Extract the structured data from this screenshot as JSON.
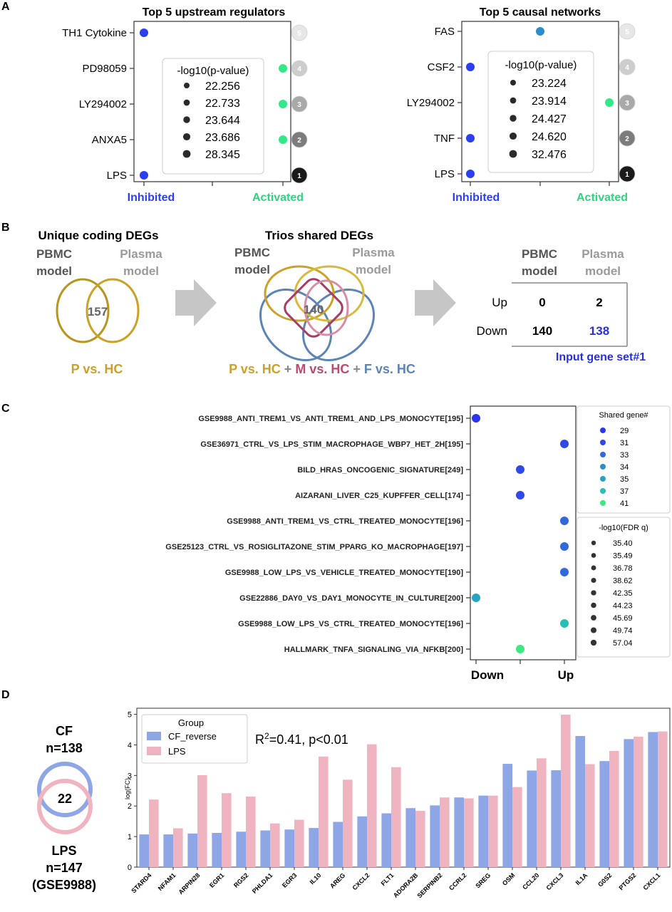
{
  "panel_labels": [
    "A",
    "B",
    "C",
    "D"
  ],
  "colors": {
    "inhibited": "#2b3ff0",
    "activated": "#33e887",
    "up_bar": "#ffffff",
    "gold": "#c9a227",
    "maroon": "#b94a72",
    "steel": "#5e84b6",
    "pink": "#e9a8b8",
    "cf_bar": "#8ea5e6",
    "lps_bar": "#f0b4c0",
    "gray_label": "#9a9a9a",
    "input_blue": "#2730e0"
  },
  "panel_a": {
    "x_labels": [
      "Inhibited",
      "Activated"
    ],
    "legend_title": "-log10(p-value)",
    "upstream": {
      "title": "Top 5 upstream regulators",
      "regulators": [
        "TH1 Cytokine",
        "PD98059",
        "LY294002",
        "ANXA5",
        "LPS"
      ],
      "state": [
        "inhibited",
        "activated",
        "activated",
        "activated",
        "inhibited"
      ],
      "rank": [
        "5",
        "4",
        "3",
        "2",
        "1"
      ],
      "legend_values": [
        "22.256",
        "22.733",
        "23.644",
        "23.686",
        "28.345"
      ]
    },
    "causal": {
      "title": "Top 5 causal networks",
      "regulators": [
        "FAS",
        "CSF2",
        "LY294002",
        "TNF",
        "LPS"
      ],
      "state": [
        "mid",
        "inhibited",
        "activated",
        "inhibited",
        "inhibited"
      ],
      "rank": [
        "5",
        "4",
        "3",
        "2",
        "1"
      ],
      "legend_values": [
        "23.224",
        "23.914",
        "24.427",
        "24.620",
        "32.476"
      ]
    }
  },
  "panel_b": {
    "unique_title": "Unique coding DEGs",
    "trios_title": "Trios shared DEGs",
    "pbmc_label": [
      "PBMC",
      "model"
    ],
    "plasma_label": [
      "Plasma",
      "model"
    ],
    "unique_count": "157",
    "trios_count": "140",
    "p_vs_hc": "P vs. HC",
    "plus": "+",
    "m_vs_hc": "M vs. HC",
    "f_vs_hc": "F vs. HC",
    "table": {
      "col_headers": [
        [
          "PBMC",
          "model"
        ],
        [
          "Plasma",
          "model"
        ]
      ],
      "rows": [
        {
          "label": "Up",
          "pbmc": "0",
          "plasma": "2"
        },
        {
          "label": "Down",
          "pbmc": "140",
          "plasma": "138"
        }
      ],
      "caption": "Input gene set#1"
    }
  },
  "panel_c": {
    "chart_data": {
      "type": "scatter",
      "x_ticks": [
        "Down",
        "Up"
      ],
      "gene_sets": [
        "GSE9988_ANTI_TREM1_VS_ANTI_TREM1_AND_LPS_MONOCYTE[195]",
        "GSE36971_CTRL_VS_LPS_STIM_MACROPHAGE_WBP7_HET_2H[195]",
        "BILD_HRAS_ONCOGENIC_SIGNATURE[249]",
        "AIZARANI_LIVER_C25_KUPFFER_CELL[174]",
        "GSE9988_ANTI_TREM1_VS_CTRL_TREATED_MONOCYTE[196]",
        "GSE25123_CTRL_VS_ROSIGLITAZONE_STIM_PPARG_KO_MACROPHAGE[197]",
        "GSE9988_LOW_LPS_VS_VEHICLE_TREATED_MONOCYTE[190]",
        "GSE22886_DAY0_VS_DAY1_MONOCYTE_IN_CULTURE[200]",
        "GSE9988_LOW_LPS_VS_CTRL_TREATED_MONOCYTE[196]",
        "HALLMARK_TNFA_SIGNALING_VIA_NFKB[200]"
      ],
      "direction": [
        0,
        1,
        0.5,
        0.5,
        1,
        1,
        1,
        0,
        1,
        0.5
      ],
      "shared_genes": [
        29,
        31,
        31,
        31,
        33,
        33,
        33,
        35,
        37,
        41
      ],
      "legend_shared_title": "Shared gene#",
      "legend_shared": [
        {
          "label": "29",
          "color": "#2b35ef"
        },
        {
          "label": "31",
          "color": "#2f48e8"
        },
        {
          "label": "33",
          "color": "#2f69dc"
        },
        {
          "label": "34",
          "color": "#2a8ecc"
        },
        {
          "label": "35",
          "color": "#2aa3c2"
        },
        {
          "label": "37",
          "color": "#27c0b4"
        },
        {
          "label": "41",
          "color": "#3be882"
        }
      ],
      "legend_fdr_title": "-log10(FDR q)",
      "legend_fdr": [
        "35.40",
        "35.49",
        "36.78",
        "38.62",
        "42.35",
        "44.23",
        "45.69",
        "49.74",
        "57.04"
      ]
    }
  },
  "panel_d": {
    "venn": {
      "cf_label": "CF",
      "cf_n": "n=138",
      "overlap": "22",
      "lps_label": "LPS",
      "lps_n": "n=147",
      "lps_source": "(GSE9988)"
    },
    "annotation_r2": "R",
    "annotation_sup": "2",
    "annotation_rest": "=0.41, p<0.01",
    "chart_data": {
      "type": "bar",
      "ylabel": "log(FC)",
      "ylim": [
        0,
        5.2
      ],
      "yticks": [
        "0",
        "1",
        "2",
        "3",
        "4",
        "5"
      ],
      "legend_title": "Group",
      "categories": [
        "STARD4",
        "NFAM1",
        "ARPIN28",
        "EGR1",
        "RGS2",
        "PHLDA1",
        "EGR3",
        "IL10",
        "AREG",
        "CXCL2",
        "FLT1",
        "ADORA2B",
        "SERPINB2",
        "CCRL2",
        "SREG",
        "OSM",
        "CCL20",
        "CXCL3",
        "IL1A",
        "G0S2",
        "PTGS2",
        "CXCL1"
      ],
      "series": [
        {
          "name": "CF_reverse",
          "values": [
            1.07,
            1.07,
            1.1,
            1.12,
            1.16,
            1.2,
            1.23,
            1.28,
            1.48,
            1.66,
            1.76,
            1.93,
            2.02,
            2.28,
            2.34,
            3.38,
            3.16,
            3.17,
            4.29,
            3.47,
            4.19,
            4.42
          ]
        },
        {
          "name": "LPS",
          "values": [
            2.21,
            1.27,
            3.01,
            2.42,
            2.31,
            1.43,
            1.55,
            3.62,
            2.86,
            4.02,
            3.27,
            1.84,
            2.28,
            2.25,
            2.34,
            2.62,
            3.56,
            4.99,
            3.37,
            3.8,
            4.27,
            4.44
          ]
        }
      ]
    }
  }
}
